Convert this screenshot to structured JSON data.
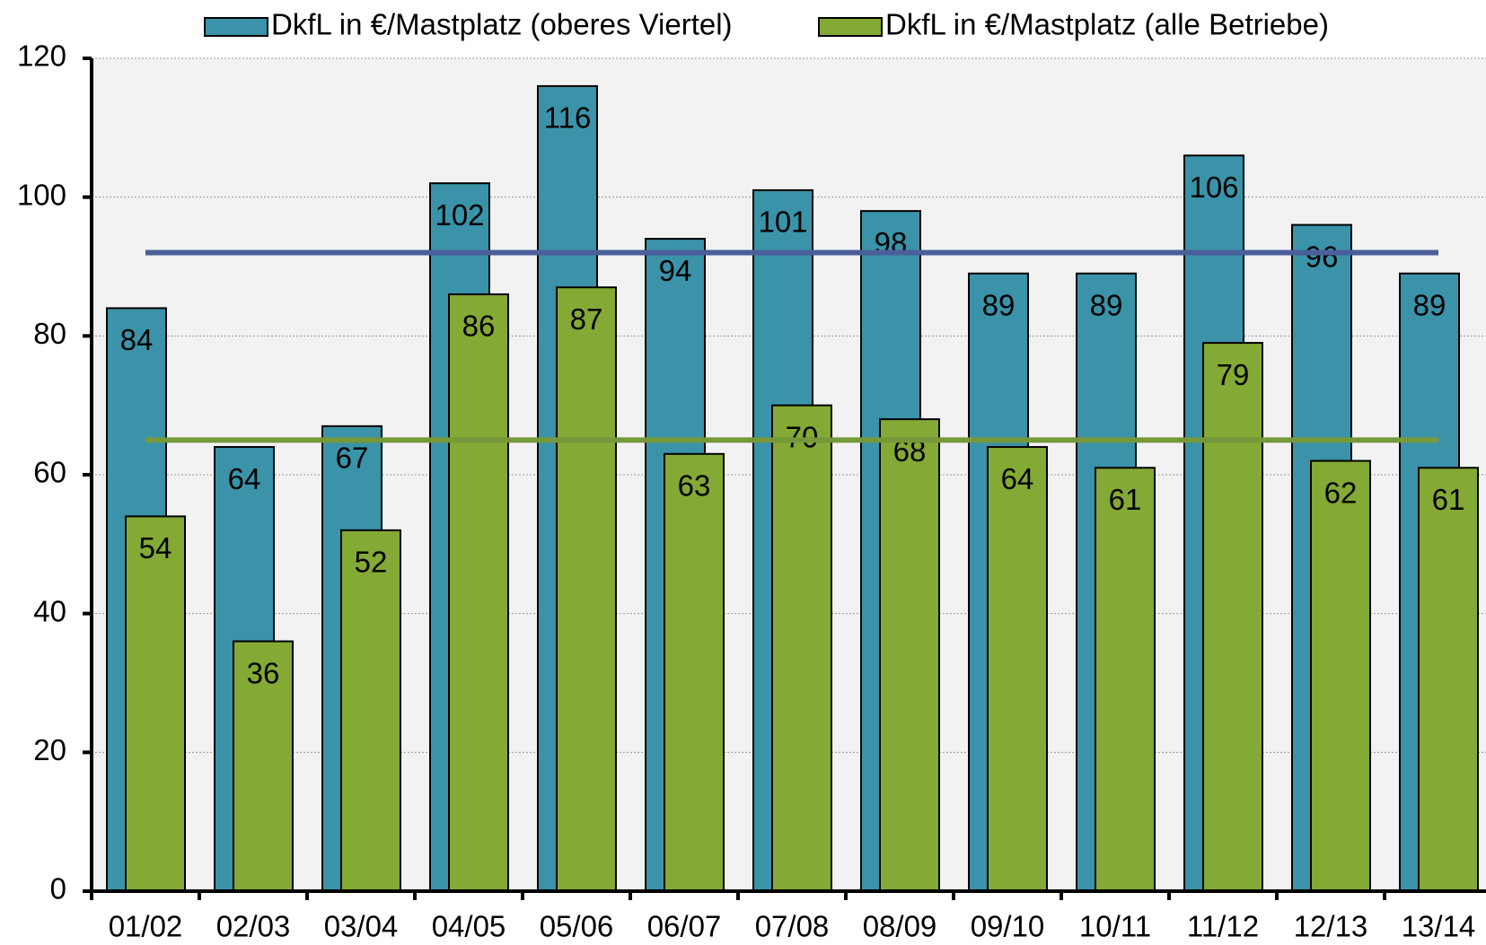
{
  "chart_data": {
    "type": "bar",
    "categories": [
      "01/02",
      "02/03",
      "03/04",
      "04/05",
      "05/06",
      "06/07",
      "07/08",
      "08/09",
      "09/10",
      "10/11",
      "11/12",
      "12/13",
      "13/14"
    ],
    "series": [
      {
        "name": "DkfL in €/Mastplatz (oberes Viertel)",
        "color": "#3a93a8",
        "values": [
          84,
          64,
          67,
          102,
          116,
          94,
          101,
          98,
          89,
          89,
          106,
          96,
          89
        ]
      },
      {
        "name": "DkfL in €/Mastplatz (alle Betriebe)",
        "color": "#84a935",
        "values": [
          54,
          36,
          52,
          86,
          87,
          63,
          70,
          68,
          64,
          61,
          79,
          62,
          61
        ]
      }
    ],
    "reference_lines": [
      {
        "value": 92,
        "color": "#4a5f9a"
      },
      {
        "value": 65,
        "color": "#76983a"
      }
    ],
    "ylim": [
      0,
      120
    ],
    "yticks": [
      0,
      20,
      40,
      60,
      80,
      100,
      120
    ],
    "grid": true,
    "legend": "top"
  }
}
